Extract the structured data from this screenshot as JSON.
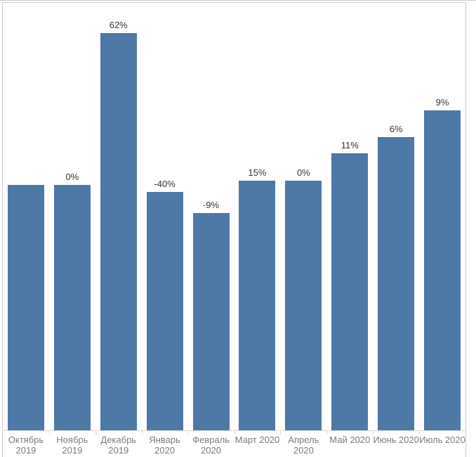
{
  "chart_data": {
    "type": "bar",
    "title": "",
    "xlabel": "",
    "ylabel": "",
    "categories": [
      "Октябрь 2019",
      "Ноябрь 2019",
      "Декабрь 2019",
      "Январь 2020",
      "Февраль 2020",
      "Март 2020",
      "Апрель 2020",
      "Май 2020",
      "Июнь 2020",
      "Июль 2020"
    ],
    "category_lines": [
      [
        "Октябрь",
        "2019"
      ],
      [
        "Ноябрь",
        "2019"
      ],
      [
        "Декабрь",
        "2019"
      ],
      [
        "Январь",
        "2020"
      ],
      [
        "Февраль",
        "2020"
      ],
      [
        "Март 2020"
      ],
      [
        "Апрель",
        "2020"
      ],
      [
        "Май 2020"
      ],
      [
        "Июнь 2020"
      ],
      [
        "Июль 2020"
      ]
    ],
    "values": [
      100,
      100,
      162,
      97.2,
      88.5,
      101.7,
      101.7,
      112.9,
      119.7,
      130.4
    ],
    "bar_labels": [
      "",
      "0%",
      "62%",
      "-40%",
      "-9%",
      "15%",
      "0%",
      "11%",
      "6%",
      "9%"
    ],
    "ylim": [
      0,
      174
    ],
    "grid": false,
    "legend": false,
    "axis_visible": false,
    "bar_color": "#4e79a7",
    "value_label_color": "#333333",
    "axis_label_color": "#7b7b7b",
    "frame_color": "#cbcbcb",
    "axis_line_color": "#d9d9d9"
  }
}
